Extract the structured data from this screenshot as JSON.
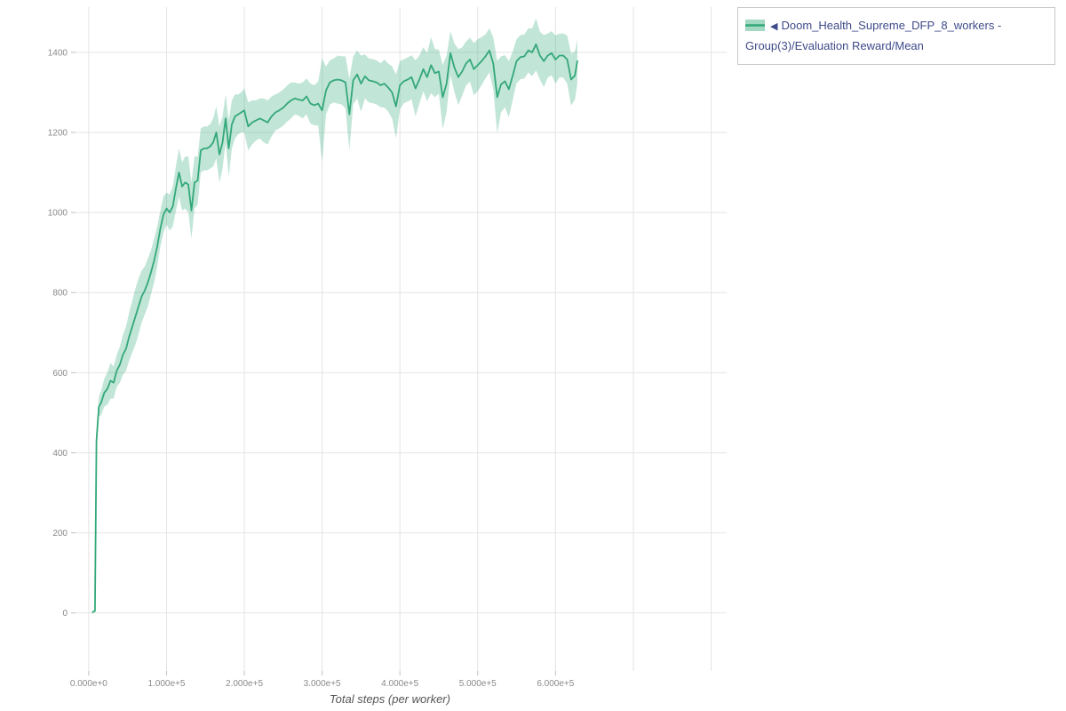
{
  "colors": {
    "legend_text": "#3e4a89",
    "line": "#33a879",
    "band": "#33a879",
    "grid": "#e4e4e4",
    "tick_label": "#8a8a8a",
    "axis_title": "#555555",
    "tick_mark": "#c0c0c0"
  },
  "legend": {
    "marker_icon": "◀",
    "label": "Doom_Health_Supreme_DFP_8_workers - Group(3)/Evaluation Reward/Mean"
  },
  "chart_data": {
    "type": "line",
    "title": "",
    "xlabel": "Total steps (per worker)",
    "ylabel": "",
    "grid": true,
    "legend_position": "top-right",
    "xlim": [
      -17000,
      820000
    ],
    "ylim": [
      -145,
      1513
    ],
    "x_ticks": {
      "values": [
        0,
        100000,
        200000,
        300000,
        400000,
        500000,
        600000
      ],
      "labels": [
        "0.000e+0",
        "1.000e+5",
        "2.000e+5",
        "3.000e+5",
        "4.000e+5",
        "5.000e+5",
        "6.000e+5"
      ]
    },
    "x_grid_extra": [
      700000,
      800000
    ],
    "y_ticks": [
      0,
      200,
      400,
      600,
      800,
      1000,
      1200,
      1400
    ],
    "series": [
      {
        "name": "Doom_Health_Supreme_DFP_8_workers - Group(3)/Evaluation Reward/Mean",
        "color": "#33a879",
        "band_color": "#33a879",
        "band_opacity": 0.3,
        "x": [
          5000,
          8000,
          10000,
          13000,
          16000,
          20000,
          24000,
          28000,
          32000,
          36000,
          40000,
          44000,
          48000,
          52000,
          56000,
          60000,
          64000,
          68000,
          72000,
          76000,
          80000,
          84000,
          88000,
          92000,
          96000,
          100000,
          104000,
          108000,
          112000,
          116000,
          120000,
          124000,
          128000,
          132000,
          136000,
          140000,
          144000,
          148000,
          152000,
          156000,
          160000,
          164000,
          168000,
          172000,
          176000,
          180000,
          184000,
          188000,
          192000,
          196000,
          200000,
          205000,
          210000,
          215000,
          220000,
          225000,
          230000,
          235000,
          240000,
          245000,
          250000,
          255000,
          260000,
          265000,
          270000,
          275000,
          280000,
          285000,
          290000,
          295000,
          300000,
          305000,
          310000,
          315000,
          320000,
          325000,
          330000,
          335000,
          340000,
          345000,
          350000,
          355000,
          360000,
          365000,
          370000,
          375000,
          380000,
          385000,
          390000,
          395000,
          400000,
          405000,
          410000,
          415000,
          420000,
          425000,
          430000,
          435000,
          440000,
          445000,
          450000,
          455000,
          460000,
          465000,
          470000,
          475000,
          480000,
          485000,
          490000,
          495000,
          500000,
          505000,
          510000,
          515000,
          520000,
          525000,
          530000,
          535000,
          540000,
          545000,
          550000,
          555000,
          560000,
          565000,
          570000,
          575000,
          580000,
          585000,
          590000,
          595000,
          600000,
          605000,
          610000,
          615000,
          620000,
          625000,
          628000
        ],
        "mean": [
          2,
          5,
          430,
          515,
          525,
          550,
          560,
          580,
          575,
          605,
          620,
          645,
          660,
          690,
          715,
          740,
          765,
          790,
          805,
          825,
          850,
          880,
          915,
          960,
          995,
          1010,
          1000,
          1015,
          1060,
          1100,
          1065,
          1075,
          1070,
          1005,
          1075,
          1080,
          1155,
          1160,
          1160,
          1165,
          1175,
          1200,
          1145,
          1175,
          1235,
          1160,
          1220,
          1240,
          1245,
          1250,
          1255,
          1215,
          1225,
          1230,
          1235,
          1230,
          1225,
          1240,
          1250,
          1255,
          1262,
          1272,
          1280,
          1285,
          1282,
          1280,
          1290,
          1272,
          1268,
          1272,
          1255,
          1305,
          1325,
          1330,
          1332,
          1330,
          1325,
          1245,
          1330,
          1345,
          1322,
          1340,
          1330,
          1328,
          1325,
          1318,
          1322,
          1312,
          1300,
          1265,
          1318,
          1328,
          1332,
          1338,
          1310,
          1332,
          1358,
          1338,
          1368,
          1348,
          1352,
          1288,
          1322,
          1398,
          1362,
          1338,
          1352,
          1372,
          1382,
          1358,
          1368,
          1378,
          1390,
          1405,
          1372,
          1288,
          1320,
          1328,
          1308,
          1342,
          1378,
          1388,
          1390,
          1405,
          1400,
          1420,
          1392,
          1378,
          1392,
          1398,
          1382,
          1392,
          1392,
          1382,
          1332,
          1342,
          1378
        ],
        "band_halfwidth": [
          2,
          3,
          20,
          25,
          30,
          35,
          40,
          45,
          40,
          40,
          45,
          50,
          55,
          60,
          65,
          70,
          70,
          65,
          60,
          60,
          55,
          55,
          50,
          45,
          45,
          40,
          45,
          50,
          55,
          60,
          60,
          65,
          70,
          70,
          65,
          60,
          55,
          55,
          55,
          55,
          60,
          65,
          70,
          65,
          60,
          70,
          60,
          55,
          50,
          50,
          55,
          60,
          55,
          50,
          50,
          55,
          55,
          50,
          45,
          45,
          45,
          45,
          45,
          40,
          40,
          45,
          45,
          50,
          50,
          55,
          130,
          60,
          55,
          55,
          60,
          60,
          65,
          90,
          60,
          60,
          70,
          55,
          55,
          55,
          55,
          55,
          60,
          60,
          65,
          80,
          60,
          55,
          55,
          55,
          70,
          60,
          55,
          60,
          70,
          60,
          55,
          80,
          70,
          55,
          60,
          70,
          60,
          55,
          55,
          65,
          65,
          60,
          55,
          55,
          65,
          90,
          70,
          65,
          70,
          60,
          55,
          55,
          55,
          55,
          60,
          65,
          60,
          65,
          55,
          55,
          60,
          55,
          55,
          60,
          65,
          60,
          55
        ]
      }
    ]
  }
}
